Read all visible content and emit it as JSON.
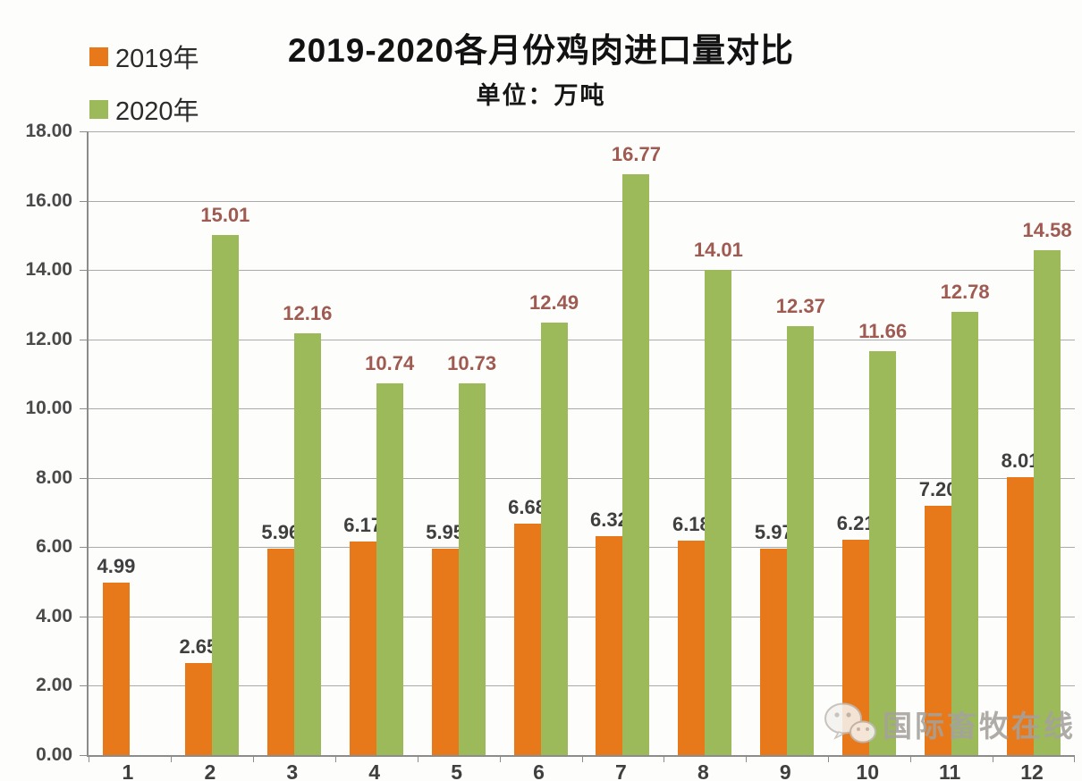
{
  "title": "2019-2020各月份鸡肉进口量对比",
  "subtitle": "单位：万吨",
  "legend": [
    {
      "label": "2019年",
      "color": "#E8791A"
    },
    {
      "label": "2020年",
      "color": "#9CBA59"
    }
  ],
  "watermark": {
    "text": "国际畜牧在线",
    "icon": "wechat-icon"
  },
  "colors": {
    "bar_2019": "#E8791A",
    "bar_2020": "#9CBA59",
    "label_2019": "#3F3F3F",
    "label_2020": "#9F5B52",
    "gridline": "#AAAAAA",
    "axis": "#8C8C8C"
  },
  "chart_data": {
    "type": "bar",
    "title": "2019-2020各月份鸡肉进口量对比",
    "subtitle": "单位：万吨",
    "xlabel": "",
    "ylabel": "",
    "categories": [
      "1",
      "2",
      "3",
      "4",
      "5",
      "6",
      "7",
      "8",
      "9",
      "10",
      "11",
      "12"
    ],
    "series": [
      {
        "name": "2019年",
        "color": "#E8791A",
        "label_color": "#3F3F3F",
        "values": [
          4.99,
          2.65,
          5.96,
          6.17,
          5.95,
          6.68,
          6.32,
          6.18,
          5.97,
          6.21,
          7.2,
          8.01
        ]
      },
      {
        "name": "2020年",
        "color": "#9CBA59",
        "label_color": "#9F5B52",
        "values": [
          null,
          15.01,
          12.16,
          10.74,
          10.73,
          12.49,
          16.77,
          14.01,
          12.37,
          11.66,
          12.78,
          14.58
        ]
      }
    ],
    "ylim": [
      0,
      18
    ],
    "ytick_step": 2,
    "ytick_format": "two-decimals",
    "grid": true,
    "legend_position": "top-left",
    "data_labels": true
  }
}
